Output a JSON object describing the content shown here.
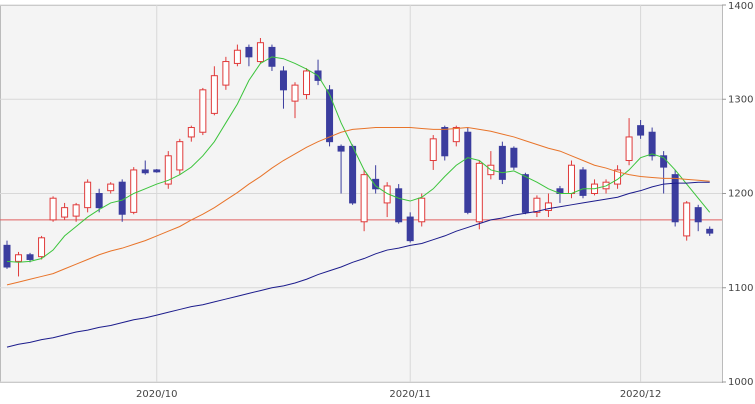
{
  "chart_data": {
    "type": "candlestick",
    "categories": [
      null,
      null,
      null,
      null,
      null,
      null,
      null,
      null,
      null,
      null,
      null,
      null,
      null,
      "2020/10",
      null,
      null,
      null,
      null,
      null,
      null,
      null,
      null,
      null,
      null,
      null,
      null,
      null,
      null,
      null,
      null,
      null,
      null,
      null,
      null,
      null,
      "2020/11",
      null,
      null,
      null,
      null,
      null,
      null,
      null,
      null,
      null,
      null,
      null,
      null,
      null,
      null,
      null,
      null,
      null,
      null,
      null,
      "2020/12",
      null,
      null,
      null,
      null,
      null,
      null
    ],
    "open": [
      1145,
      1128,
      1135,
      1133,
      1172,
      1175,
      1176,
      1185,
      1200,
      1203,
      1212,
      1180,
      1225,
      1225,
      1210,
      1225,
      1260,
      1265,
      1285,
      1315,
      1338,
      1355,
      1340,
      1355,
      1330,
      1298,
      1305,
      1330,
      1310,
      1250,
      1250,
      1170,
      1215,
      1190,
      1205,
      1175,
      1170,
      1235,
      1270,
      1255,
      1265,
      1170,
      1220,
      1250,
      1248,
      1220,
      1180,
      1182,
      1205,
      1200,
      1225,
      1200,
      1205,
      1210,
      1235,
      1272,
      1265,
      1240,
      1220,
      1155,
      1185,
      1162
    ],
    "high": [
      1150,
      1138,
      1137,
      1155,
      1197,
      1190,
      1190,
      1215,
      1205,
      1212,
      1215,
      1228,
      1235,
      1226,
      1245,
      1258,
      1272,
      1312,
      1335,
      1345,
      1358,
      1358,
      1365,
      1358,
      1335,
      1318,
      1333,
      1342,
      1315,
      1252,
      1252,
      1225,
      1230,
      1212,
      1210,
      1180,
      1200,
      1262,
      1272,
      1272,
      1270,
      1235,
      1245,
      1255,
      1250,
      1222,
      1198,
      1200,
      1208,
      1235,
      1228,
      1215,
      1215,
      1230,
      1280,
      1278,
      1270,
      1245,
      1225,
      1192,
      1188,
      1165
    ],
    "low": [
      1120,
      1112,
      1127,
      1130,
      1170,
      1172,
      1170,
      1180,
      1180,
      1200,
      1170,
      1178,
      1220,
      1222,
      1205,
      1220,
      1255,
      1262,
      1283,
      1310,
      1335,
      1335,
      1338,
      1330,
      1290,
      1280,
      1300,
      1315,
      1250,
      1200,
      1188,
      1160,
      1200,
      1175,
      1168,
      1148,
      1165,
      1225,
      1235,
      1250,
      1178,
      1162,
      1215,
      1210,
      1225,
      1178,
      1175,
      1175,
      1190,
      1195,
      1195,
      1198,
      1200,
      1205,
      1230,
      1258,
      1235,
      1200,
      1165,
      1150,
      1160,
      1155
    ],
    "close": [
      1122,
      1135,
      1130,
      1153,
      1195,
      1185,
      1188,
      1212,
      1185,
      1210,
      1178,
      1225,
      1222,
      1223,
      1240,
      1255,
      1270,
      1310,
      1325,
      1340,
      1352,
      1345,
      1360,
      1335,
      1310,
      1315,
      1330,
      1320,
      1255,
      1245,
      1190,
      1220,
      1205,
      1208,
      1170,
      1150,
      1195,
      1258,
      1240,
      1270,
      1180,
      1232,
      1230,
      1215,
      1228,
      1180,
      1195,
      1190,
      1200,
      1230,
      1198,
      1210,
      1212,
      1225,
      1260,
      1262,
      1240,
      1228,
      1170,
      1190,
      1170,
      1158
    ],
    "up_color": "#e03a3a",
    "down_color": "#3b3d9e",
    "lines": [
      {
        "color": "#3cc43c",
        "values": [
          1128,
          1127,
          1128,
          1131,
          1140,
          1155,
          1165,
          1175,
          1183,
          1190,
          1193,
          1200,
          1205,
          1210,
          1214,
          1220,
          1228,
          1240,
          1255,
          1275,
          1295,
          1320,
          1338,
          1345,
          1343,
          1338,
          1332,
          1325,
          1305,
          1275,
          1250,
          1225,
          1208,
          1200,
          1195,
          1192,
          1196,
          1205,
          1218,
          1230,
          1238,
          1235,
          1225,
          1222,
          1224,
          1218,
          1212,
          1205,
          1200,
          1200,
          1205,
          1205,
          1208,
          1215,
          1225,
          1238,
          1242,
          1238,
          1225,
          1210,
          1195,
          1180
        ]
      },
      {
        "color": "#e8742a",
        "values": [
          1103,
          1106,
          1109,
          1112,
          1115,
          1120,
          1125,
          1130,
          1135,
          1139,
          1142,
          1146,
          1150,
          1155,
          1160,
          1165,
          1172,
          1178,
          1185,
          1193,
          1201,
          1210,
          1218,
          1227,
          1235,
          1242,
          1249,
          1255,
          1260,
          1265,
          1268,
          1269,
          1270,
          1270,
          1270,
          1270,
          1269,
          1268,
          1268,
          1269,
          1270,
          1268,
          1266,
          1263,
          1260,
          1256,
          1252,
          1248,
          1245,
          1240,
          1235,
          1230,
          1227,
          1223,
          1220,
          1218,
          1217,
          1216,
          1216,
          1215,
          1214,
          1213
        ]
      },
      {
        "color": "#1c1c8c",
        "values": [
          1037,
          1040,
          1042,
          1045,
          1047,
          1050,
          1053,
          1055,
          1058,
          1060,
          1063,
          1066,
          1068,
          1071,
          1074,
          1077,
          1080,
          1082,
          1085,
          1088,
          1091,
          1094,
          1097,
          1100,
          1102,
          1105,
          1109,
          1114,
          1118,
          1122,
          1127,
          1131,
          1136,
          1140,
          1142,
          1145,
          1147,
          1151,
          1155,
          1160,
          1164,
          1168,
          1172,
          1174,
          1177,
          1179,
          1181,
          1184,
          1186,
          1188,
          1190,
          1192,
          1194,
          1196,
          1200,
          1203,
          1207,
          1210,
          1211,
          1211,
          1212,
          1212
        ]
      }
    ],
    "reference_line": {
      "value": 1172,
      "color": "#e06060"
    },
    "ylim": [
      1000,
      1400
    ],
    "yticks": [
      1000,
      1100,
      1200,
      1300,
      1400
    ],
    "grid": true
  }
}
